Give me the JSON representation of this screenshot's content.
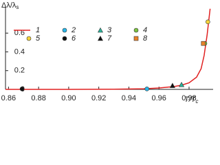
{
  "chart_data": {
    "type": "scatter",
    "y_label": {
      "main": "Δλ/λ",
      "sub": "s"
    },
    "x_label": {
      "main": "T/T",
      "sub": "c"
    },
    "xlim": [
      0.858,
      0.996
    ],
    "ylim": [
      0,
      0.88
    ],
    "xticks": [
      0.86,
      0.88,
      {
        "value": 0.9,
        "label": "0.90"
      },
      0.92,
      0.94,
      0.96,
      0.98
    ],
    "yticks": [
      0,
      0.2,
      0.4,
      0.6
    ],
    "series": [
      {
        "name": "1",
        "color": "#e02020",
        "style": "line",
        "x": [
          0.858,
          0.9,
          0.93,
          0.95,
          0.96,
          0.97,
          0.975,
          0.98,
          0.985,
          0.988,
          0.99,
          0.992,
          0.994
        ],
        "values": [
          0,
          0,
          0.002,
          0.006,
          0.015,
          0.03,
          0.045,
          0.07,
          0.13,
          0.22,
          0.36,
          0.58,
          0.86
        ]
      },
      {
        "name": "2",
        "color": "#29b6e8",
        "style": "circle",
        "x": [
          0.952
        ],
        "values": [
          0.005
        ]
      },
      {
        "name": "3",
        "color": "#2bb39a",
        "style": "triangle",
        "x": [
          0.975
        ],
        "values": [
          0.05
        ]
      },
      {
        "name": "4",
        "color": "#7cc242",
        "style": "circle",
        "x": [
          0.9905
        ],
        "values": [
          0.49
        ]
      },
      {
        "name": "5",
        "color": "#f5d33a",
        "style": "circle",
        "x": [
          0.9925
        ],
        "values": [
          0.72
        ]
      },
      {
        "name": "6",
        "color": "#111111",
        "style": "circle",
        "x": [
          0.869
        ],
        "values": [
          0.005
        ]
      },
      {
        "name": "7",
        "color": "#111111",
        "style": "triangle",
        "x": [
          0.969
        ],
        "values": [
          0.04
        ]
      },
      {
        "name": "8",
        "color": "#e8822a",
        "style": "square",
        "x": [
          0.9895
        ],
        "values": [
          0.49
        ]
      }
    ]
  }
}
